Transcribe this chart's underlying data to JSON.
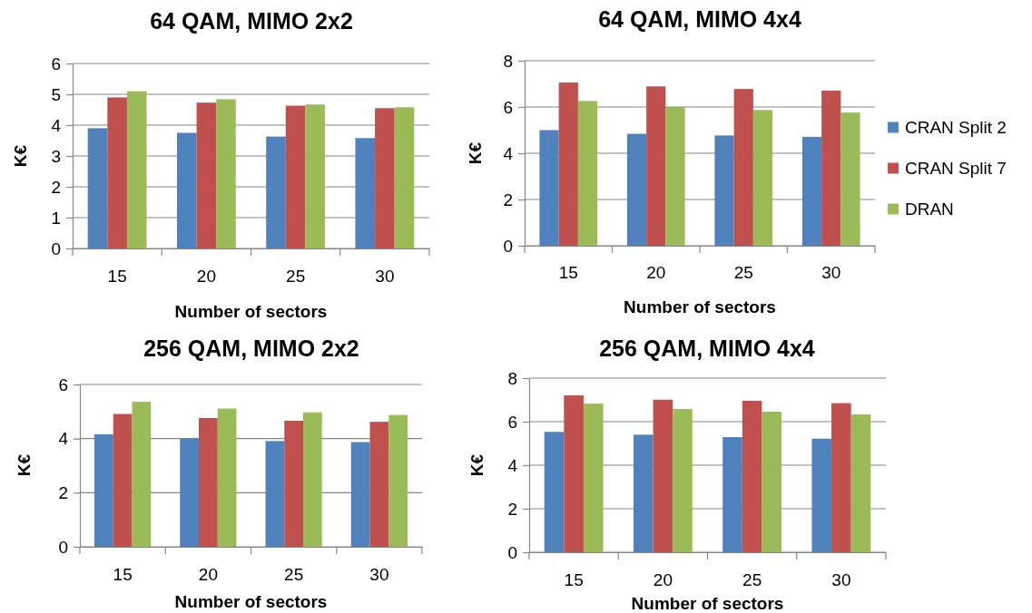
{
  "chart_data": [
    {
      "type": "bar",
      "title": "64 QAM, MIMO 2x2",
      "xlabel": "Number of sectors",
      "ylabel": "K€",
      "categories": [
        "15",
        "20",
        "25",
        "30"
      ],
      "series": [
        {
          "color": "#4f81bd",
          "values": [
            3.9,
            3.75,
            3.63,
            3.58
          ]
        },
        {
          "color": "#c0504d",
          "values": [
            4.9,
            4.73,
            4.63,
            4.55
          ]
        },
        {
          "color": "#9bbb59",
          "values": [
            5.1,
            4.84,
            4.67,
            4.58
          ]
        }
      ],
      "ylim": [
        0,
        6
      ],
      "yticks": [
        0,
        1,
        2,
        3,
        4,
        5,
        6
      ],
      "grid": "y"
    },
    {
      "type": "bar",
      "title": "64 QAM, MIMO 4x4",
      "xlabel": "Number of sectors",
      "ylabel": "K€",
      "categories": [
        "15",
        "20",
        "25",
        "30"
      ],
      "series": [
        {
          "name": "CRAN Split 2",
          "color": "#4f81bd",
          "values": [
            5.0,
            4.84,
            4.77,
            4.71
          ]
        },
        {
          "name": "CRAN Split 7",
          "color": "#c0504d",
          "values": [
            7.06,
            6.89,
            6.78,
            6.71
          ]
        },
        {
          "name": "DRAN",
          "color": "#9bbb59",
          "values": [
            6.26,
            6.01,
            5.87,
            5.76
          ]
        }
      ],
      "ylim": [
        0,
        8
      ],
      "yticks": [
        0,
        2,
        4,
        6,
        8
      ],
      "grid": "y",
      "legend": "right"
    },
    {
      "type": "bar",
      "title": "256 QAM, MIMO 2x2",
      "xlabel": "Number of sectors",
      "ylabel": "K€",
      "categories": [
        "15",
        "20",
        "25",
        "30"
      ],
      "series": [
        {
          "color": "#4f81bd",
          "values": [
            4.16,
            4.01,
            3.91,
            3.87
          ]
        },
        {
          "color": "#c0504d",
          "values": [
            4.91,
            4.76,
            4.66,
            4.62
          ]
        },
        {
          "color": "#9bbb59",
          "values": [
            5.36,
            5.11,
            4.97,
            4.87
          ]
        }
      ],
      "ylim": [
        0,
        6
      ],
      "yticks": [
        0,
        2,
        4,
        6
      ],
      "grid": "y"
    },
    {
      "type": "bar",
      "title": "256 QAM, MIMO 4x4",
      "xlabel": "Number of sectors",
      "ylabel": "K€",
      "categories": [
        "15",
        "20",
        "25",
        "30"
      ],
      "series": [
        {
          "color": "#4f81bd",
          "values": [
            5.53,
            5.4,
            5.29,
            5.22
          ]
        },
        {
          "color": "#c0504d",
          "values": [
            7.21,
            7.01,
            6.96,
            6.85
          ]
        },
        {
          "color": "#9bbb59",
          "values": [
            6.83,
            6.58,
            6.46,
            6.33
          ]
        }
      ],
      "ylim": [
        0,
        8
      ],
      "yticks": [
        0,
        2,
        4,
        6,
        8
      ],
      "grid": "y"
    }
  ]
}
